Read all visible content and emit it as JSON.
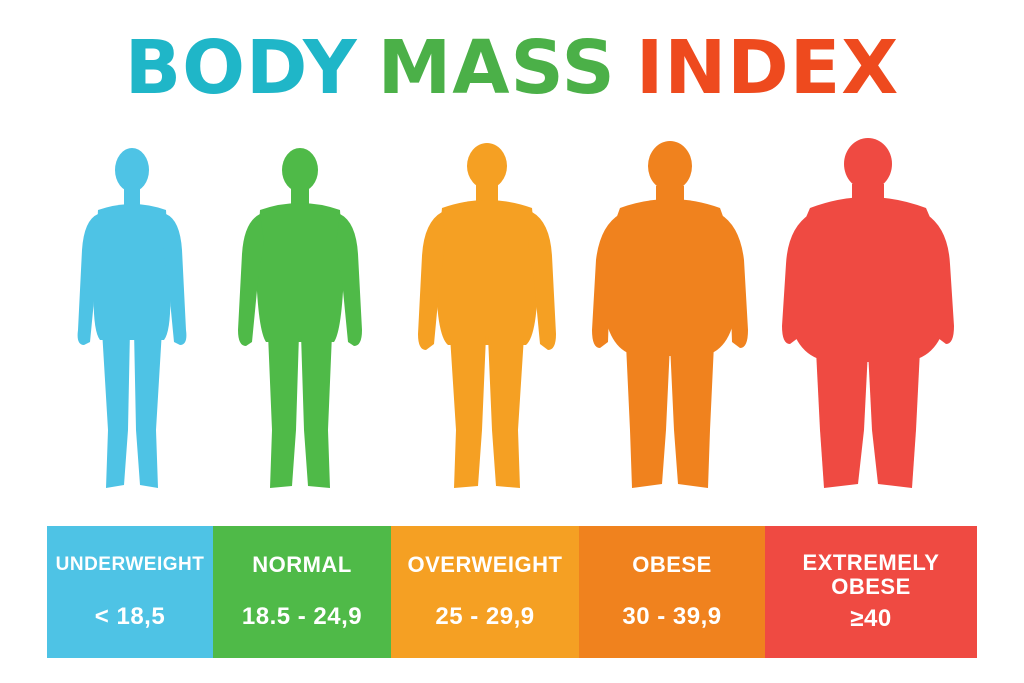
{
  "title": {
    "word1": "BODY",
    "word2": "MASS",
    "word3": "INDEX"
  },
  "colors": {
    "underweight": "#4ec3e5",
    "normal": "#4fba48",
    "overweight": "#f5a023",
    "obese": "#f0821e",
    "extremely_obese": "#ef4a42",
    "title_body": "#1fb6c8",
    "title_mass": "#4bb048",
    "title_index": "#ee4a1e"
  },
  "categories": [
    {
      "label": "UNDERWEIGHT",
      "range": "< 18,5",
      "color": "#4ec3e5"
    },
    {
      "label": "NORMAL",
      "range": "18.5 - 24,9",
      "color": "#4fba48"
    },
    {
      "label": "OVERWEIGHT",
      "range": "25 - 29,9",
      "color": "#f5a023"
    },
    {
      "label": "OBESE",
      "range": "30 - 39,9",
      "color": "#f0821e"
    },
    {
      "label": "EXTREMELY OBESE",
      "range": "≥40",
      "color": "#ef4a42"
    }
  ]
}
